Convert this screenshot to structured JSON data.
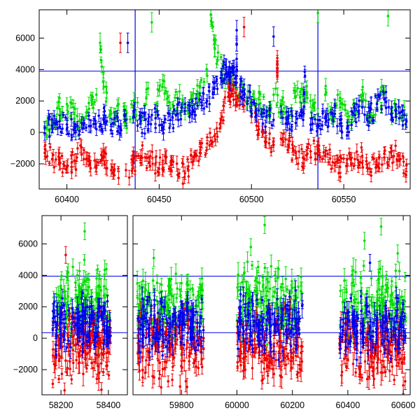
{
  "chart_data": [
    {
      "type": "scatter",
      "panel": "top",
      "title": "",
      "xlabel": "",
      "ylabel": "",
      "xlim": [
        60385,
        60586
      ],
      "ylim": [
        -3600,
        7800
      ],
      "x_ticks": [
        60400,
        60450,
        60500,
        60550
      ],
      "y_ticks": [
        -2000,
        0,
        2000,
        4000,
        6000
      ],
      "error_bars": true,
      "reference_lines": {
        "horizontal": [
          3900
        ],
        "vertical": [
          60437,
          60536
        ]
      },
      "series": [
        {
          "color": "#00dd00",
          "points": [
            [
              60388,
              200
            ],
            [
              60392,
              800
            ],
            [
              60396,
              1500
            ],
            [
              60400,
              1800
            ],
            [
              60404,
              900
            ],
            [
              60408,
              600
            ],
            [
              60412,
              1500
            ],
            [
              60416,
              2400
            ],
            [
              60420,
              2900
            ],
            [
              60424,
              1200
            ],
            [
              60428,
              1800
            ],
            [
              60432,
              800
            ],
            [
              60436,
              1600
            ],
            [
              60440,
              900
            ],
            [
              60444,
              2800
            ],
            [
              60448,
              1500
            ],
            [
              60452,
              3300
            ],
            [
              60456,
              1500
            ],
            [
              60460,
              2200
            ],
            [
              60464,
              1200
            ],
            [
              60468,
              2000
            ],
            [
              60472,
              2500
            ],
            [
              60476,
              3600
            ],
            [
              60480,
              5400
            ],
            [
              60484,
              4000
            ],
            [
              60488,
              3600
            ],
            [
              60492,
              2800
            ],
            [
              60496,
              2400
            ],
            [
              60500,
              1700
            ],
            [
              60504,
              2100
            ],
            [
              60508,
              1300
            ],
            [
              60512,
              2400
            ],
            [
              60516,
              1700
            ],
            [
              60520,
              1100
            ],
            [
              60524,
              2300
            ],
            [
              60528,
              2700
            ],
            [
              60532,
              2000
            ],
            [
              60536,
              1100
            ],
            [
              60540,
              2400
            ],
            [
              60544,
              900
            ],
            [
              60548,
              2200
            ],
            [
              60552,
              600
            ],
            [
              60556,
              1500
            ],
            [
              60560,
              2300
            ],
            [
              60564,
              1100
            ],
            [
              60568,
              1900
            ],
            [
              60572,
              2500
            ],
            [
              60576,
              1200
            ],
            [
              60580,
              1600
            ],
            [
              60584,
              800
            ],
            [
              60418,
              5700
            ],
            [
              60446,
              7000
            ],
            [
              60478,
              7500
            ],
            [
              60536,
              7600
            ],
            [
              60574,
              7400
            ]
          ]
        },
        {
          "color": "#0000ee",
          "points": [
            [
              60388,
              300
            ],
            [
              60392,
              400
            ],
            [
              60396,
              700
            ],
            [
              60400,
              500
            ],
            [
              60404,
              300
            ],
            [
              60408,
              600
            ],
            [
              60412,
              400
            ],
            [
              60416,
              200
            ],
            [
              60420,
              900
            ],
            [
              60424,
              500
            ],
            [
              60428,
              400
            ],
            [
              60432,
              800
            ],
            [
              60436,
              1000
            ],
            [
              60440,
              700
            ],
            [
              60444,
              500
            ],
            [
              60448,
              900
            ],
            [
              60452,
              300
            ],
            [
              60456,
              800
            ],
            [
              60460,
              1200
            ],
            [
              60464,
              1800
            ],
            [
              60468,
              1300
            ],
            [
              60472,
              2100
            ],
            [
              60476,
              2000
            ],
            [
              60480,
              2800
            ],
            [
              60484,
              3300
            ],
            [
              60486,
              4300
            ],
            [
              60488,
              3800
            ],
            [
              60490,
              4000
            ],
            [
              60492,
              3600
            ],
            [
              60494,
              3000
            ],
            [
              60496,
              2400
            ],
            [
              60500,
              1900
            ],
            [
              60504,
              1400
            ],
            [
              60508,
              1000
            ],
            [
              60512,
              800
            ],
            [
              60516,
              1300
            ],
            [
              60520,
              900
            ],
            [
              60524,
              600
            ],
            [
              60528,
              800
            ],
            [
              60532,
              500
            ],
            [
              60536,
              800
            ],
            [
              60540,
              900
            ],
            [
              60544,
              1200
            ],
            [
              60548,
              800
            ],
            [
              60552,
              400
            ],
            [
              60556,
              1100
            ],
            [
              60560,
              1600
            ],
            [
              60564,
              1000
            ],
            [
              60568,
              1800
            ],
            [
              60572,
              2100
            ],
            [
              60576,
              1600
            ],
            [
              60580,
              900
            ],
            [
              60584,
              700
            ],
            [
              60433,
              5700
            ],
            [
              60492,
              6500
            ],
            [
              60529,
              3600
            ],
            [
              60512,
              6100
            ]
          ]
        },
        {
          "color": "#ee0000",
          "points": [
            [
              60388,
              -1300
            ],
            [
              60392,
              -1700
            ],
            [
              60396,
              -2000
            ],
            [
              60400,
              -2200
            ],
            [
              60404,
              -1800
            ],
            [
              60408,
              -1400
            ],
            [
              60412,
              -1700
            ],
            [
              60416,
              -2100
            ],
            [
              60420,
              -1600
            ],
            [
              60424,
              -2400
            ],
            [
              60428,
              -2900
            ],
            [
              60432,
              -2400
            ],
            [
              60436,
              -1900
            ],
            [
              60440,
              -1500
            ],
            [
              60444,
              -1600
            ],
            [
              60448,
              -2000
            ],
            [
              60452,
              -1800
            ],
            [
              60456,
              -2300
            ],
            [
              60460,
              -2700
            ],
            [
              60464,
              -2600
            ],
            [
              60468,
              -1900
            ],
            [
              60472,
              -1300
            ],
            [
              60476,
              -700
            ],
            [
              60480,
              -200
            ],
            [
              60484,
              1000
            ],
            [
              60488,
              2400
            ],
            [
              60490,
              2700
            ],
            [
              60492,
              2300
            ],
            [
              60496,
              1700
            ],
            [
              60500,
              1000
            ],
            [
              60504,
              200
            ],
            [
              60508,
              -600
            ],
            [
              60512,
              -800
            ],
            [
              60516,
              -400
            ],
            [
              60520,
              -900
            ],
            [
              60524,
              -1300
            ],
            [
              60528,
              -1600
            ],
            [
              60532,
              -1200
            ],
            [
              60536,
              -1000
            ],
            [
              60540,
              -1500
            ],
            [
              60544,
              -1900
            ],
            [
              60548,
              -2200
            ],
            [
              60552,
              -2100
            ],
            [
              60556,
              -1700
            ],
            [
              60560,
              -1500
            ],
            [
              60564,
              -2300
            ],
            [
              60568,
              -2100
            ],
            [
              60572,
              -1600
            ],
            [
              60576,
              -1200
            ],
            [
              60580,
              -1800
            ],
            [
              60584,
              -2100
            ],
            [
              60429,
              5700
            ],
            [
              60514,
              4500
            ],
            [
              60514,
              3900
            ],
            [
              60496,
              6700
            ]
          ]
        }
      ]
    },
    {
      "type": "scatter",
      "panel": "bottom",
      "title": "",
      "xlabel": "",
      "ylabel": "",
      "axis_break": true,
      "ylim": [
        -3600,
        7800
      ],
      "x_ticks": [
        58200,
        58400,
        59800,
        60000,
        60200,
        60400,
        60600
      ],
      "y_ticks": [
        -2000,
        0,
        2000,
        4000,
        6000
      ],
      "error_bars": true,
      "reference_lines": {
        "horizontal": [
          3950,
          350
        ]
      },
      "segments": [
        {
          "xlim": [
            58120,
            58480
          ],
          "clusters": [
            [
              58165,
              58410
            ]
          ]
        },
        {
          "xlim": [
            59625,
            60625
          ],
          "clusters": [
            [
              59640,
              59880
            ],
            [
              60000,
              60240
            ],
            [
              60370,
              60610
            ]
          ]
        }
      ],
      "series": [
        {
          "color": "#00dd00",
          "typical_range": [
            -500,
            5000
          ],
          "points": [
            [
              58230,
              4200
            ],
            [
              58300,
              6800
            ],
            [
              58350,
              3800
            ],
            [
              59700,
              5100
            ],
            [
              59800,
              3500
            ],
            [
              60050,
              5800
            ],
            [
              60100,
              7200
            ],
            [
              60150,
              4400
            ],
            [
              60460,
              6200
            ],
            [
              60520,
              7100
            ],
            [
              60580,
              5400
            ]
          ]
        },
        {
          "color": "#0000ee",
          "typical_range": [
            -1200,
            3000
          ],
          "points": [
            [
              58180,
              500
            ],
            [
              58260,
              800
            ],
            [
              58320,
              1300
            ],
            [
              58390,
              300
            ],
            [
              59680,
              600
            ],
            [
              59760,
              900
            ],
            [
              59840,
              400
            ],
            [
              60040,
              1100
            ],
            [
              60120,
              800
            ],
            [
              60200,
              600
            ],
            [
              60420,
              1500
            ],
            [
              60480,
              4800
            ],
            [
              60540,
              1200
            ],
            [
              60600,
              700
            ]
          ]
        },
        {
          "color": "#ee0000",
          "typical_range": [
            -3300,
            2000
          ],
          "points": [
            [
              58180,
              -1200
            ],
            [
              58220,
              5300
            ],
            [
              58300,
              -800
            ],
            [
              58370,
              -1600
            ],
            [
              59660,
              -2500
            ],
            [
              59740,
              -1900
            ],
            [
              59820,
              -3100
            ],
            [
              60030,
              -2000
            ],
            [
              60090,
              -2700
            ],
            [
              60160,
              -1500
            ],
            [
              60220,
              -2200
            ],
            [
              60400,
              -1400
            ],
            [
              60470,
              -2600
            ],
            [
              60560,
              -1800
            ],
            [
              60600,
              -3000
            ]
          ]
        }
      ]
    }
  ]
}
